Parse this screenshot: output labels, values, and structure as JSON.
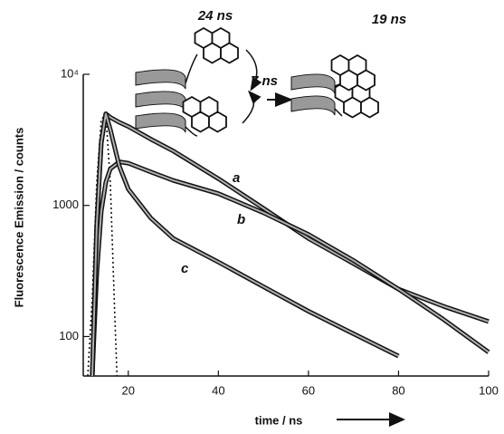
{
  "chart_data": {
    "type": "line",
    "x_label": "time / ns",
    "y_label": "Fluorescence Emission / counts",
    "x": [
      12,
      13,
      14,
      15,
      16,
      18,
      20,
      25,
      30,
      40,
      50,
      60,
      70,
      80,
      90,
      100
    ],
    "series": [
      {
        "name": "a",
        "color": "#111111",
        "values": [
          50,
          700,
          3000,
          5000,
          4700,
          4300,
          4000,
          3200,
          2600,
          1600,
          950,
          560,
          360,
          230,
          170,
          130
        ]
      },
      {
        "name": "b",
        "color": "#111111",
        "values": [
          50,
          300,
          900,
          1500,
          1900,
          2150,
          2100,
          1800,
          1550,
          1230,
          880,
          600,
          380,
          230,
          135,
          76
        ]
      },
      {
        "name": "c",
        "color": "#111111",
        "values": [
          50,
          700,
          3000,
          5000,
          3800,
          2000,
          1330,
          800,
          560,
          370,
          240,
          156,
          105,
          71,
          null,
          null
        ]
      }
    ],
    "instrument_response": {
      "x": [
        11,
        12,
        13,
        14,
        15,
        16,
        17,
        17.5
      ],
      "values": [
        50,
        200,
        1500,
        4500,
        5000,
        1500,
        150,
        50
      ]
    },
    "fit_color": "#b0b0b0",
    "annotations": [
      "24 ns",
      "7 ns",
      "19 ns"
    ],
    "xlim": [
      10,
      100
    ],
    "xticks": [
      20,
      40,
      60,
      80,
      100
    ],
    "ylim": [
      50,
      10000
    ],
    "yticks": [
      100,
      1000,
      {
        "value": 10000,
        "label": "10⁴"
      }
    ],
    "log_y": true
  }
}
